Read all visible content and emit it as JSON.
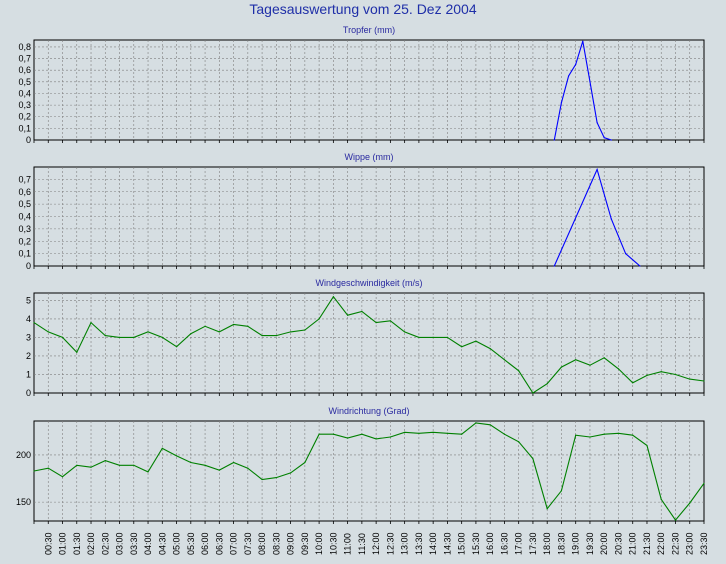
{
  "title": "Tagesauswertung vom 25. Dez 2004",
  "x_labels": [
    "00:30",
    "01:00",
    "01:30",
    "02:00",
    "02:30",
    "03:00",
    "03:30",
    "04:00",
    "04:30",
    "05:00",
    "05:30",
    "06:00",
    "06:30",
    "07:00",
    "07:30",
    "08:00",
    "08:30",
    "09:00",
    "09:30",
    "10:00",
    "10:30",
    "11:00",
    "11:30",
    "12:00",
    "12:30",
    "13:00",
    "13:30",
    "14:00",
    "14:30",
    "15:00",
    "15:30",
    "16:00",
    "16:30",
    "17:00",
    "17:30",
    "18:00",
    "18:30",
    "19:00",
    "19:30",
    "20:00",
    "20:30",
    "21:00",
    "21:30",
    "22:00",
    "22:30",
    "23:00",
    "23:30"
  ],
  "colors": {
    "background": "#d6dee2",
    "plot": "#d6dee2",
    "grid": "#7f7f7f",
    "rain": "#0000ff",
    "wind": "#008000"
  },
  "chart_data": [
    {
      "type": "line",
      "title": "Tropfer (mm)",
      "ylim": [
        0,
        0.86
      ],
      "yticks": [
        0,
        0.1,
        0.2,
        0.3,
        0.4,
        0.5,
        0.6,
        0.7,
        0.8
      ],
      "ytick_labels": [
        "0",
        "0,1",
        "0,2",
        "0,3",
        "0,4",
        "0,5",
        "0,6",
        "0,7",
        "0,8"
      ],
      "series": [
        {
          "color": "#0000ff",
          "x": [
            36.5,
            37,
            37.5,
            38,
            38.5,
            39,
            39.5,
            40,
            40.5
          ],
          "values": [
            0,
            0.32,
            0.55,
            0.65,
            0.85,
            0.5,
            0.15,
            0.02,
            0
          ]
        }
      ]
    },
    {
      "type": "line",
      "title": "Wippe (mm)",
      "ylim": [
        0,
        0.8
      ],
      "yticks": [
        0,
        0.1,
        0.2,
        0.3,
        0.4,
        0.5,
        0.6,
        0.7
      ],
      "ytick_labels": [
        "0",
        "0,1",
        "0,2",
        "0,3",
        "0,4",
        "0,5",
        "0,6",
        "0,7"
      ],
      "series": [
        {
          "color": "#0000ff",
          "x": [
            36.5,
            39.5,
            40.5,
            41.5,
            42.5
          ],
          "values": [
            0,
            0.78,
            0.38,
            0.1,
            0
          ]
        }
      ]
    },
    {
      "type": "line",
      "title": "Windgeschwindigkeit (m/s)",
      "ylim": [
        0,
        5.4
      ],
      "yticks": [
        0,
        1,
        2,
        3,
        4,
        5
      ],
      "ytick_labels": [
        "0",
        "1",
        "2",
        "3",
        "4",
        "5"
      ],
      "series": [
        {
          "color": "#008000",
          "x": [
            0,
            1,
            2,
            3,
            4,
            5,
            6,
            7,
            8,
            9,
            10,
            11,
            12,
            13,
            14,
            15,
            16,
            17,
            18,
            19,
            20,
            21,
            22,
            23,
            24,
            25,
            26,
            27,
            28,
            29,
            30,
            31,
            32,
            33,
            34,
            35,
            36,
            37,
            38,
            39,
            40,
            41,
            42,
            43,
            44,
            45,
            46,
            47
          ],
          "values": [
            3.8,
            3.3,
            3.0,
            2.2,
            3.8,
            3.1,
            3.0,
            3.0,
            3.3,
            3.0,
            2.5,
            3.2,
            3.6,
            3.3,
            3.7,
            3.6,
            3.1,
            3.1,
            3.3,
            3.4,
            4.0,
            5.2,
            4.2,
            4.4,
            3.8,
            3.9,
            3.3,
            3.0,
            3.0,
            3.0,
            2.5,
            2.8,
            2.4,
            1.8,
            1.2,
            0.0,
            0.5,
            1.4,
            1.8,
            1.5,
            1.9,
            1.3,
            0.55,
            0.95,
            1.15,
            1.0,
            0.75,
            0.65
          ]
        }
      ]
    },
    {
      "type": "line",
      "title": "Windrichtung (Grad)",
      "ylim": [
        130,
        236
      ],
      "yticks": [
        150,
        200
      ],
      "ytick_labels": [
        "150",
        "200"
      ],
      "series": [
        {
          "color": "#008000",
          "x": [
            0,
            1,
            2,
            3,
            4,
            5,
            6,
            7,
            8,
            9,
            10,
            11,
            12,
            13,
            14,
            15,
            16,
            17,
            18,
            19,
            20,
            21,
            22,
            23,
            24,
            25,
            26,
            27,
            28,
            29,
            30,
            31,
            32,
            33,
            34,
            35,
            36,
            37,
            38,
            39,
            40,
            41,
            42,
            43,
            44,
            45,
            46,
            47
          ],
          "values": [
            183,
            186,
            177,
            189,
            187,
            194,
            189,
            189,
            182,
            207,
            199,
            192,
            189,
            184,
            192,
            186,
            174,
            176,
            181,
            192,
            222,
            222,
            218,
            222,
            217,
            219,
            224,
            223,
            224,
            223,
            222,
            234,
            232,
            222,
            214,
            196,
            143,
            162,
            221,
            219,
            222,
            223,
            221,
            210,
            153,
            131,
            149,
            170
          ]
        }
      ]
    }
  ]
}
